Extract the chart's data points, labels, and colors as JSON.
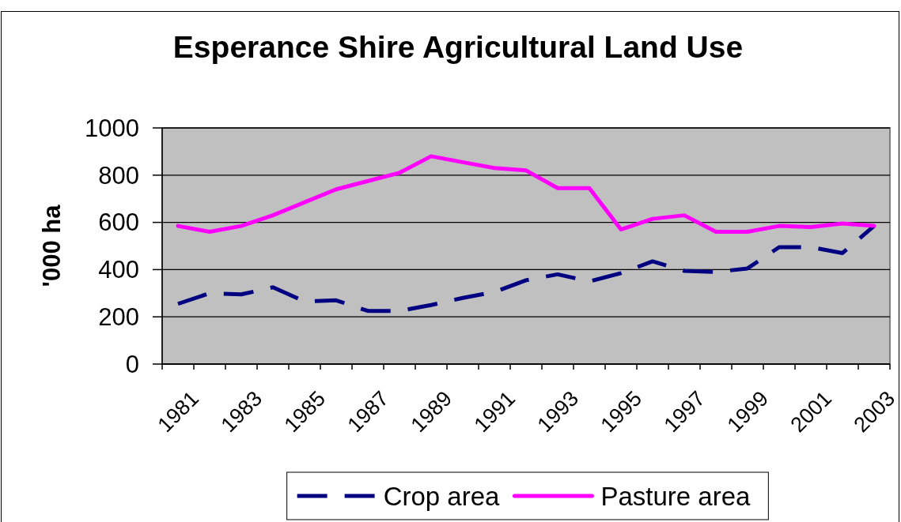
{
  "chart_data": {
    "type": "line",
    "title": "Esperance Shire Agricultural Land Use",
    "ylabel": "'000 ha",
    "categories": [
      "1981",
      null,
      "1983",
      null,
      "1985",
      null,
      "1987",
      null,
      "1989",
      null,
      "1991",
      null,
      "1993",
      null,
      "1995",
      null,
      "1997",
      null,
      "1999",
      null,
      "2001",
      null,
      "2003"
    ],
    "series": [
      {
        "name": "Crop area",
        "color": "#000080",
        "line_style": "dashed",
        "values": [
          255,
          300,
          295,
          325,
          265,
          270,
          225,
          225,
          250,
          280,
          305,
          355,
          380,
          350,
          385,
          435,
          395,
          390,
          405,
          495,
          495,
          470,
          585
        ]
      },
      {
        "name": "Pasture area",
        "color": "#ff00ff",
        "line_style": "solid",
        "values": [
          585,
          560,
          585,
          630,
          685,
          740,
          775,
          810,
          880,
          855,
          830,
          820,
          745,
          745,
          570,
          615,
          630,
          560,
          560,
          585,
          580,
          595,
          585
        ]
      }
    ],
    "ylim": [
      0,
      1000
    ],
    "yticks": [
      0,
      200,
      400,
      600,
      800,
      1000
    ],
    "grid": "y",
    "legend": "bottom"
  }
}
